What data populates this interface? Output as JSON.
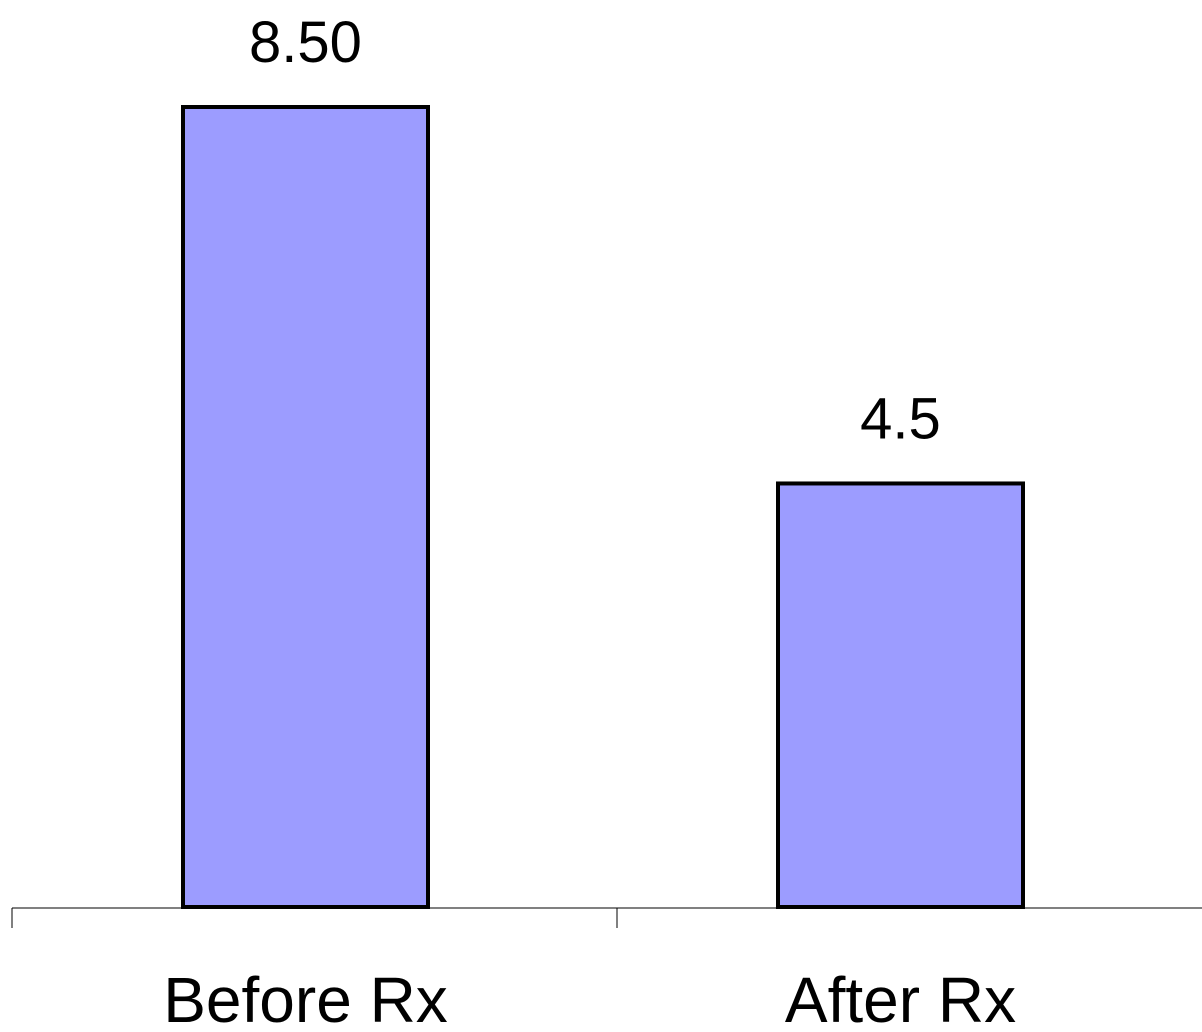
{
  "chart_data": {
    "type": "bar",
    "categories": [
      "Before Rx",
      "After Rx"
    ],
    "values": [
      8.5,
      4.5
    ],
    "data_labels": [
      "8.50",
      "4.5"
    ],
    "title": "",
    "xlabel": "",
    "ylabel": "",
    "ylim": [
      0,
      8.5
    ],
    "grid": false,
    "legend": "none",
    "colors": {
      "bar_fill": "#9c9cff",
      "bar_stroke": "#000000",
      "axis": "#000000"
    }
  }
}
